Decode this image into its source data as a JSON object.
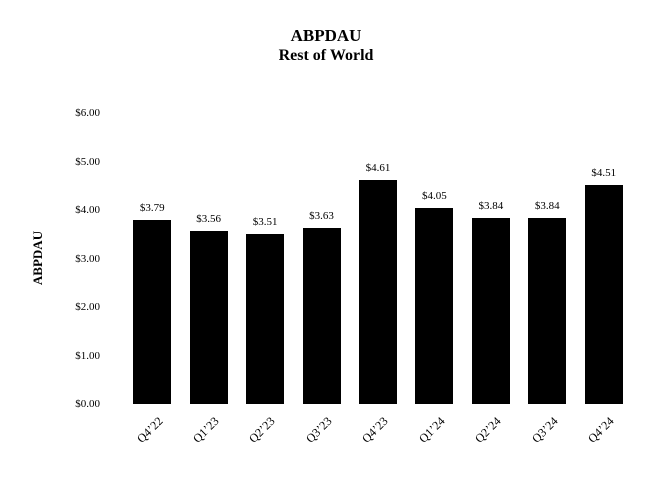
{
  "chart": {
    "title": "ABPDAU",
    "subtitle": "Rest of World",
    "ylabel": "ABPDAU"
  },
  "chart_data": {
    "type": "bar",
    "title": "ABPDAU",
    "subtitle": "Rest of World",
    "categories": [
      "Q4’22",
      "Q1’23",
      "Q2’23",
      "Q3’23",
      "Q4’23",
      "Q1’24",
      "Q2’24",
      "Q3’24",
      "Q4’24"
    ],
    "values": [
      3.79,
      3.56,
      3.51,
      3.63,
      4.61,
      4.05,
      3.84,
      3.84,
      4.51
    ],
    "value_labels": [
      "$3.79",
      "$3.56",
      "$3.51",
      "$3.63",
      "$4.61",
      "$4.05",
      "$3.84",
      "$3.84",
      "$4.51"
    ],
    "xlabel": "",
    "ylabel": "ABPDAU",
    "ylim": [
      0,
      6
    ],
    "ytick_step": 1,
    "ytick_labels": [
      "$0.00",
      "$1.00",
      "$2.00",
      "$3.00",
      "$4.00",
      "$5.00",
      "$6.00"
    ],
    "bar_color": "#000000",
    "grid": false,
    "legend_position": "none"
  }
}
